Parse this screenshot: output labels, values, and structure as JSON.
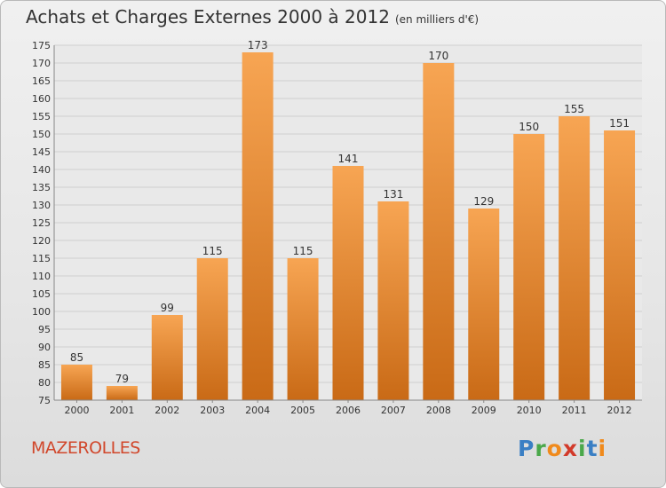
{
  "header": {
    "title": "Achats et Charges Externes 2000 à 2012",
    "unit": "(en milliers d'€)"
  },
  "footer": {
    "commune": "MAZEROLLES"
  },
  "logo": {
    "letters": [
      {
        "ch": "P",
        "color": "#3a7fc4"
      },
      {
        "ch": "r",
        "color": "#4aa84a"
      },
      {
        "ch": "o",
        "color": "#f08a1c"
      },
      {
        "ch": "x",
        "color": "#d23a2a"
      },
      {
        "ch": "i",
        "color": "#4aa84a"
      },
      {
        "ch": "t",
        "color": "#3a7fc4"
      },
      {
        "ch": "i",
        "color": "#f08a1c"
      }
    ]
  },
  "colors": {
    "bar_top": "#f7a553",
    "bar_bottom": "#c96a16",
    "grid": "#cfcfcf"
  },
  "chart_data": {
    "type": "bar",
    "title": "Achats et Charges Externes 2000 à 2012",
    "subtitle": "(en milliers d'€)",
    "xlabel": "",
    "ylabel": "",
    "categories": [
      "2000",
      "2001",
      "2002",
      "2003",
      "2004",
      "2005",
      "2006",
      "2007",
      "2008",
      "2009",
      "2010",
      "2011",
      "2012"
    ],
    "values": [
      85,
      79,
      99,
      115,
      173,
      115,
      141,
      131,
      170,
      129,
      150,
      155,
      151
    ],
    "data_labels": [
      "85",
      "79",
      "99",
      "115",
      "173",
      "115",
      "141",
      "131",
      "170",
      "129",
      "150",
      "155",
      "151"
    ],
    "ylim": [
      75,
      175
    ],
    "yticks": [
      75,
      80,
      85,
      90,
      95,
      100,
      105,
      110,
      115,
      120,
      125,
      130,
      135,
      140,
      145,
      150,
      155,
      160,
      165,
      170,
      175
    ],
    "grid": true,
    "legend": "none"
  }
}
